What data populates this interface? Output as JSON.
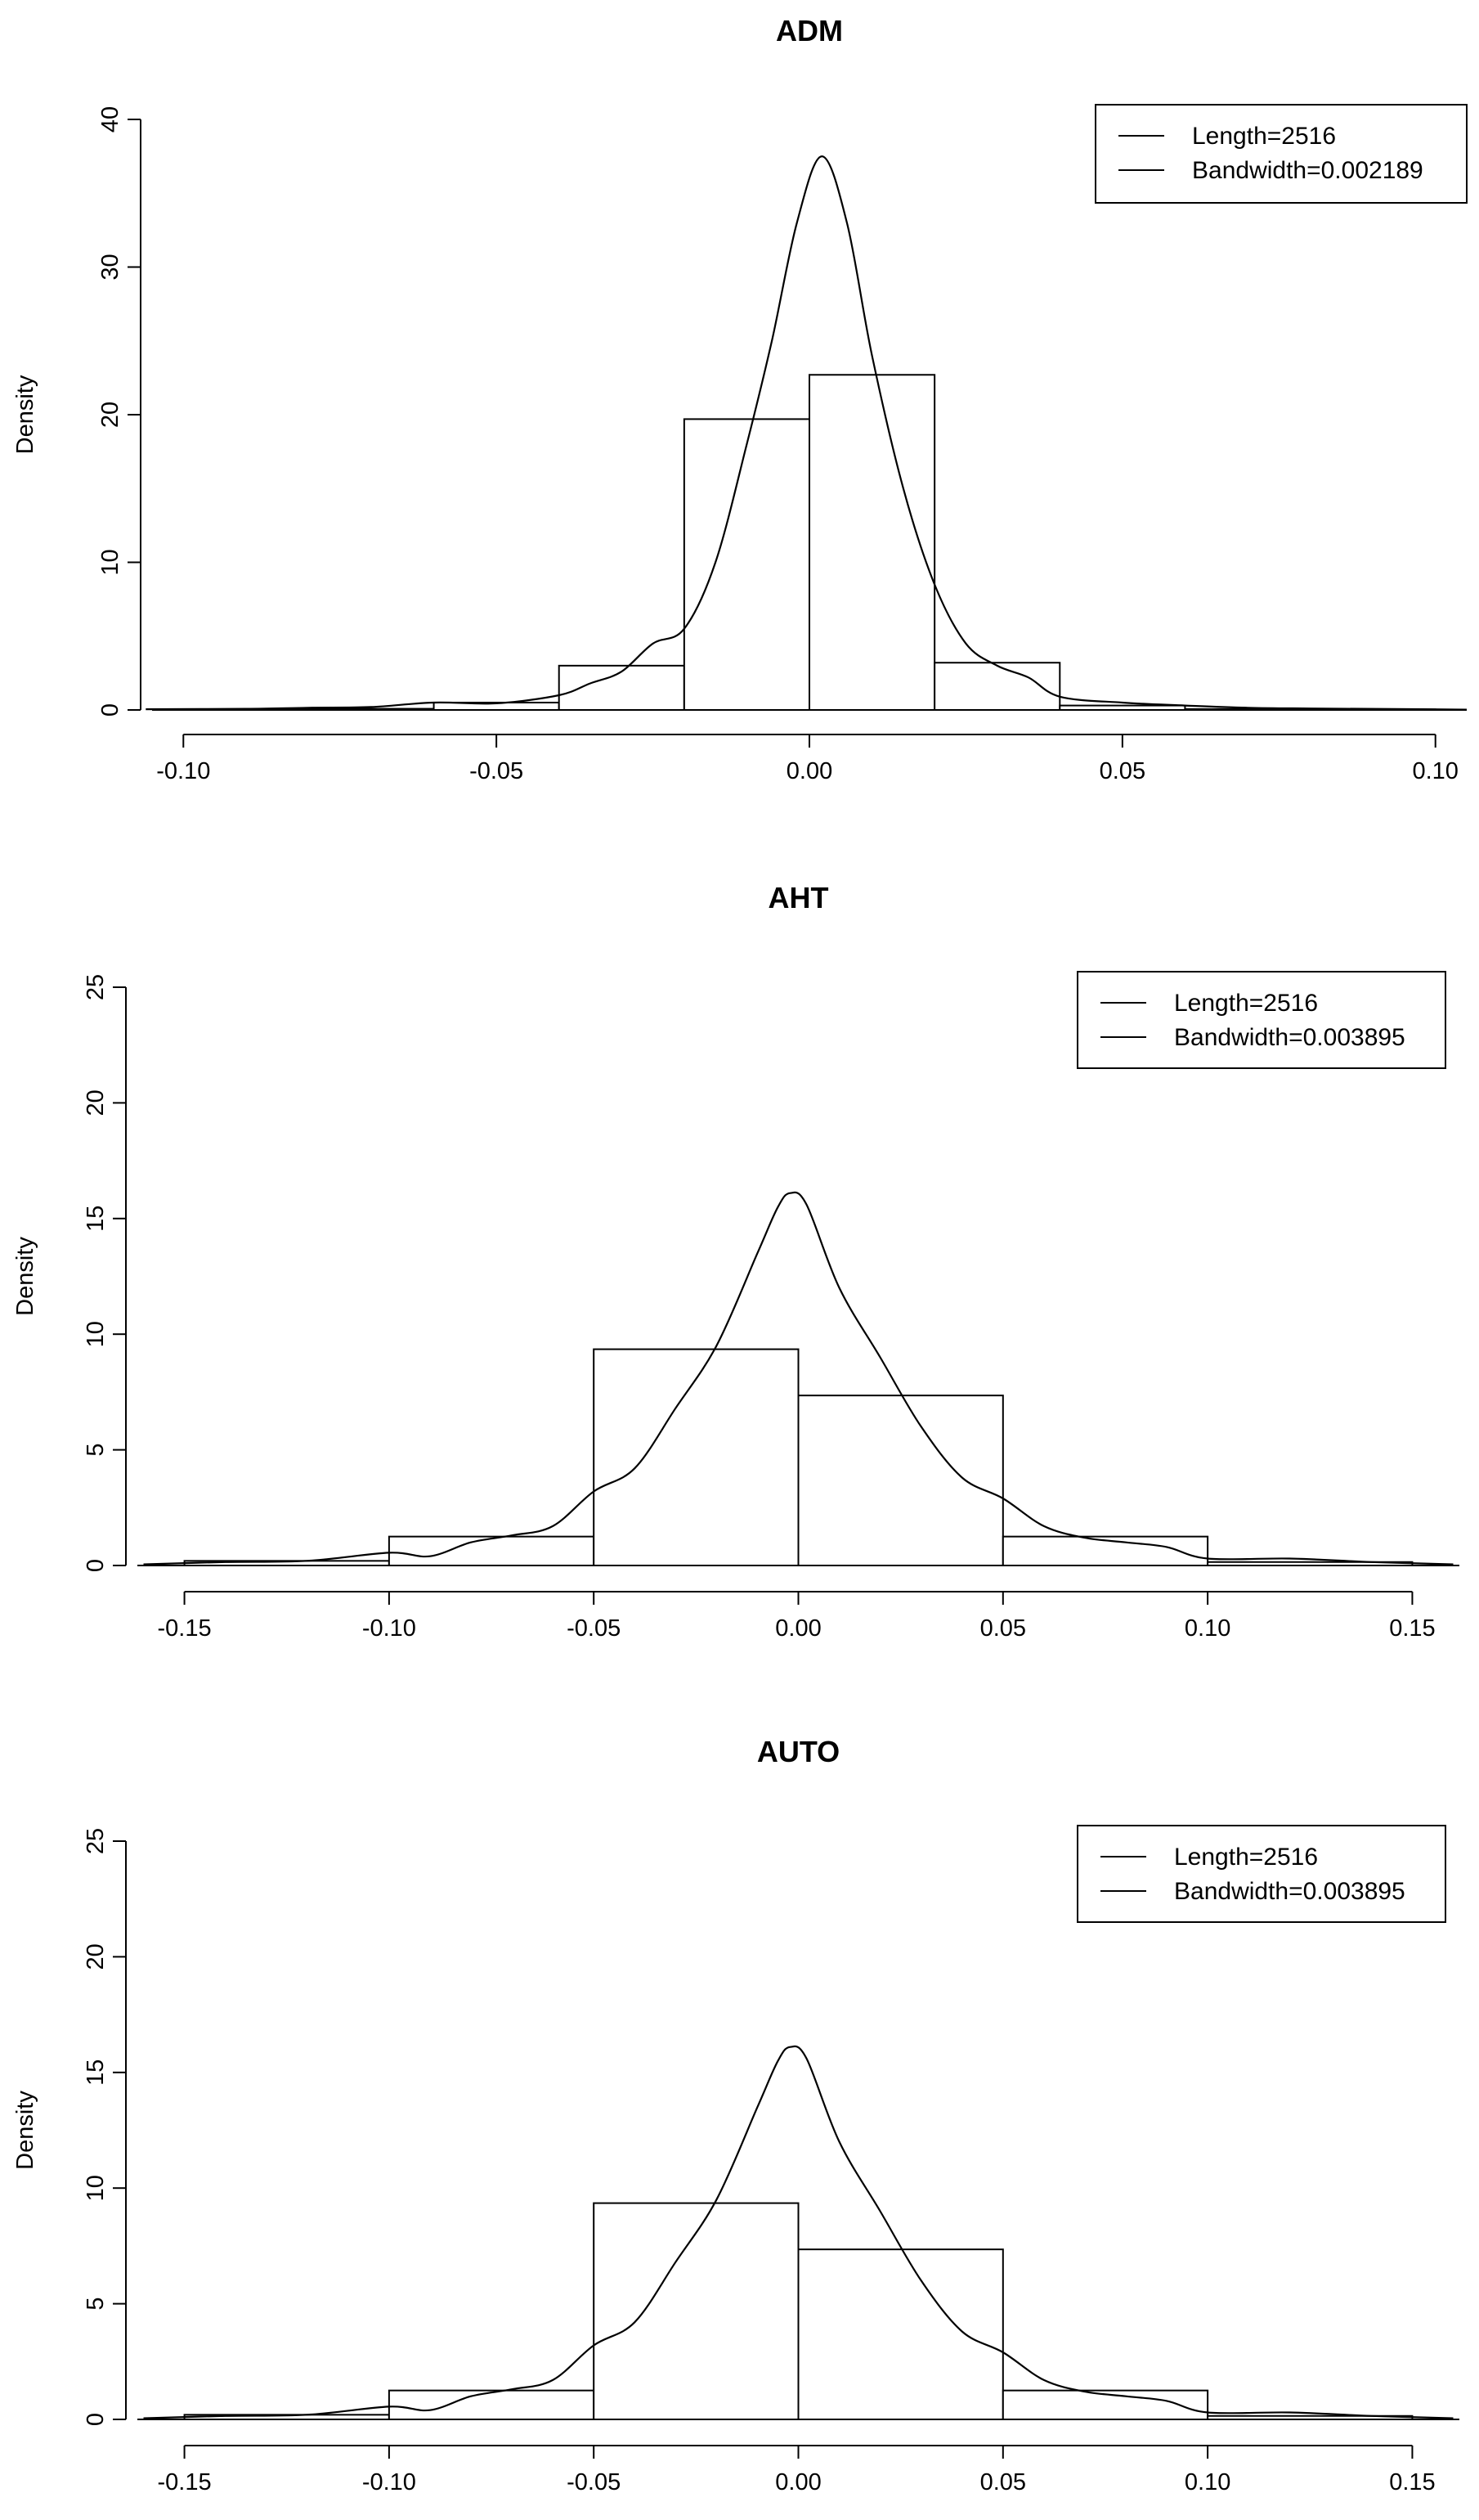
{
  "chart_data": [
    {
      "type": "histogram",
      "title": "ADM",
      "ylabel": "Density",
      "xlabel": "",
      "xlim": [
        -0.105,
        0.105
      ],
      "ylim": [
        0,
        40
      ],
      "x_ticks": [
        -0.1,
        -0.05,
        0.0,
        0.05,
        0.1
      ],
      "x_tick_labels": [
        "-0.10",
        "-0.05",
        "0.00",
        "0.05",
        "0.10"
      ],
      "y_ticks": [
        0,
        10,
        20,
        30,
        40
      ],
      "y_tick_labels": [
        "0",
        "10",
        "20",
        "30",
        "40"
      ],
      "bins": [
        {
          "from": -0.1,
          "to": -0.08,
          "density": 0.04
        },
        {
          "from": -0.08,
          "to": -0.06,
          "density": 0.08
        },
        {
          "from": -0.06,
          "to": -0.04,
          "density": 0.5
        },
        {
          "from": -0.04,
          "to": -0.02,
          "density": 3.0
        },
        {
          "from": -0.02,
          "to": 0.0,
          "density": 19.7
        },
        {
          "from": 0.0,
          "to": 0.02,
          "density": 22.7
        },
        {
          "from": 0.02,
          "to": 0.04,
          "density": 3.2
        },
        {
          "from": 0.04,
          "to": 0.06,
          "density": 0.3
        },
        {
          "from": 0.06,
          "to": 0.08,
          "density": 0.06
        },
        {
          "from": 0.08,
          "to": 0.1,
          "density": 0.04
        }
      ],
      "density_curve": {
        "x": [
          -0.106,
          -0.09,
          -0.08,
          -0.07,
          -0.06,
          -0.05,
          -0.04,
          -0.035,
          -0.03,
          -0.025,
          -0.02,
          -0.015,
          -0.01,
          -0.006,
          -0.002,
          0.002,
          0.006,
          0.01,
          0.015,
          0.02,
          0.025,
          0.03,
          0.035,
          0.04,
          0.05,
          0.06,
          0.07,
          0.08,
          0.098,
          0.105
        ],
        "y": [
          0.05,
          0.08,
          0.15,
          0.2,
          0.5,
          0.45,
          1.0,
          1.8,
          2.6,
          4.5,
          5.5,
          10.0,
          18.0,
          25.0,
          33.0,
          37.5,
          33.0,
          24.0,
          15.0,
          8.5,
          4.5,
          3.0,
          2.2,
          0.9,
          0.5,
          0.3,
          0.15,
          0.1,
          0.05,
          0.02
        ]
      },
      "legend": {
        "position": "top-right",
        "entries": [
          "Length=2516",
          "Bandwidth=0.002189"
        ]
      }
    },
    {
      "type": "histogram",
      "title": "AHT",
      "ylabel": "Density",
      "xlabel": "",
      "xlim": [
        -0.1615,
        0.1615
      ],
      "ylim": [
        0,
        25
      ],
      "x_ticks": [
        -0.15,
        -0.1,
        -0.05,
        0.0,
        0.05,
        0.1,
        0.15
      ],
      "x_tick_labels": [
        "-0.15",
        "-0.10",
        "-0.05",
        "0.00",
        "0.05",
        "0.10",
        "0.15"
      ],
      "y_ticks": [
        0,
        5,
        10,
        15,
        20,
        25
      ],
      "y_tick_labels": [
        "0",
        "5",
        "10",
        "15",
        "20",
        "25"
      ],
      "bins": [
        {
          "from": -0.15,
          "to": -0.1,
          "density": 0.2
        },
        {
          "from": -0.1,
          "to": -0.05,
          "density": 1.25
        },
        {
          "from": -0.05,
          "to": 0.0,
          "density": 9.35
        },
        {
          "from": 0.0,
          "to": 0.05,
          "density": 7.35
        },
        {
          "from": 0.05,
          "to": 0.1,
          "density": 1.25
        },
        {
          "from": 0.1,
          "to": 0.15,
          "density": 0.15
        }
      ],
      "density_curve": {
        "x": [
          -0.16,
          -0.14,
          -0.12,
          -0.1,
          -0.09,
          -0.08,
          -0.07,
          -0.06,
          -0.05,
          -0.04,
          -0.03,
          -0.02,
          -0.01,
          -0.005,
          -0.002,
          0.002,
          0.01,
          0.02,
          0.03,
          0.04,
          0.05,
          0.06,
          0.07,
          0.08,
          0.09,
          0.1,
          0.12,
          0.14,
          0.16
        ],
        "y": [
          0.05,
          0.15,
          0.2,
          0.55,
          0.4,
          1.0,
          1.3,
          1.7,
          3.2,
          4.2,
          6.8,
          9.5,
          13.5,
          15.5,
          16.1,
          15.6,
          12.0,
          9.0,
          6.0,
          3.8,
          2.9,
          1.7,
          1.2,
          1.0,
          0.8,
          0.3,
          0.3,
          0.15,
          0.05
        ]
      },
      "legend": {
        "position": "top-right",
        "entries": [
          "Length=2516",
          "Bandwidth=0.003895"
        ]
      }
    },
    {
      "type": "histogram",
      "title": "AUTO",
      "ylabel": "Density",
      "xlabel": "",
      "xlim": [
        -0.1615,
        0.1615
      ],
      "ylim": [
        0,
        25
      ],
      "x_ticks": [
        -0.15,
        -0.1,
        -0.05,
        0.0,
        0.05,
        0.1,
        0.15
      ],
      "x_tick_labels": [
        "-0.15",
        "-0.10",
        "-0.05",
        "0.00",
        "0.05",
        "0.10",
        "0.15"
      ],
      "y_ticks": [
        0,
        5,
        10,
        15,
        20,
        25
      ],
      "y_tick_labels": [
        "0",
        "5",
        "10",
        "15",
        "20",
        "25"
      ],
      "bins": [
        {
          "from": -0.15,
          "to": -0.1,
          "density": 0.2
        },
        {
          "from": -0.1,
          "to": -0.05,
          "density": 1.25
        },
        {
          "from": -0.05,
          "to": 0.0,
          "density": 9.35
        },
        {
          "from": 0.0,
          "to": 0.05,
          "density": 7.35
        },
        {
          "from": 0.05,
          "to": 0.1,
          "density": 1.25
        },
        {
          "from": 0.1,
          "to": 0.15,
          "density": 0.15
        }
      ],
      "density_curve": {
        "x": [
          -0.16,
          -0.14,
          -0.12,
          -0.1,
          -0.09,
          -0.08,
          -0.07,
          -0.06,
          -0.05,
          -0.04,
          -0.03,
          -0.02,
          -0.01,
          -0.005,
          -0.002,
          0.002,
          0.01,
          0.02,
          0.03,
          0.04,
          0.05,
          0.06,
          0.07,
          0.08,
          0.09,
          0.1,
          0.12,
          0.14,
          0.16
        ],
        "y": [
          0.05,
          0.15,
          0.2,
          0.55,
          0.4,
          1.0,
          1.3,
          1.7,
          3.2,
          4.2,
          6.8,
          9.5,
          13.5,
          15.5,
          16.1,
          15.6,
          12.0,
          9.0,
          6.0,
          3.8,
          2.9,
          1.7,
          1.2,
          1.0,
          0.8,
          0.3,
          0.3,
          0.15,
          0.05
        ]
      },
      "legend": {
        "position": "top-right",
        "entries": [
          "Length=2516",
          "Bandwidth=0.003895"
        ]
      }
    }
  ]
}
